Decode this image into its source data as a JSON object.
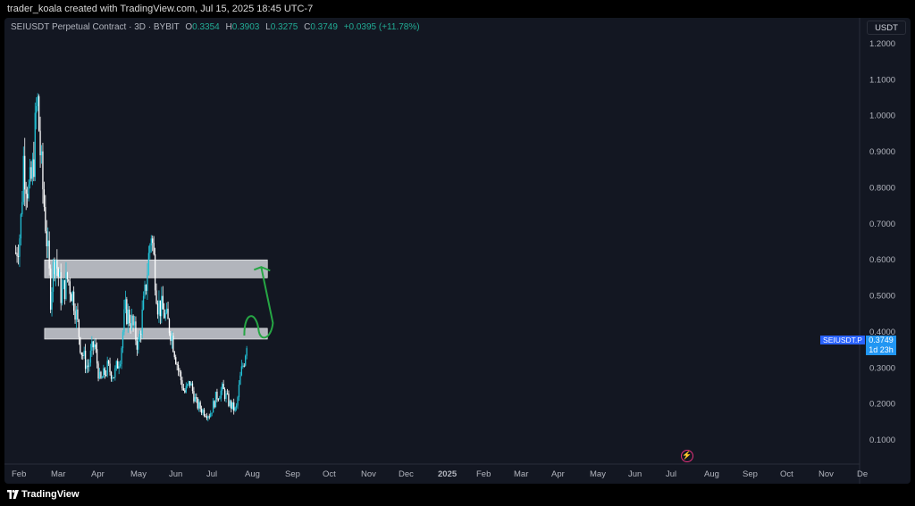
{
  "header": {
    "credit": "trader_koala created with TradingView.com, Jul 15, 2025 18:45 UTC-7"
  },
  "legend": {
    "symbol": "SEIUSDT Perpetual Contract · 3D · BYBIT",
    "open_label": "O",
    "open": "0.3354",
    "high_label": "H",
    "high": "0.3903",
    "low_label": "L",
    "low": "0.3275",
    "close_label": "C",
    "close": "0.3749",
    "change": "+0.0395 (+11.78%)"
  },
  "price_axis": {
    "unit": "USDT",
    "ticks": [
      "1.2000",
      "1.1000",
      "1.0000",
      "0.9000",
      "0.8000",
      "0.7000",
      "0.6000",
      "0.5000",
      "0.4000",
      "0.3000",
      "0.2000",
      "0.1000"
    ]
  },
  "time_axis": {
    "ticks": [
      "Feb",
      "Mar",
      "Apr",
      "May",
      "Jun",
      "Jul",
      "Aug",
      "Sep",
      "Oct",
      "Nov",
      "Dec",
      "2025",
      "Feb",
      "Mar",
      "Apr",
      "May",
      "Jun",
      "Jul",
      "Aug",
      "Sep",
      "Oct",
      "Nov",
      "De"
    ]
  },
  "price_tag": {
    "symbol": "SEIUSDT.P",
    "value": "0.3749",
    "countdown": "1d 23h"
  },
  "footer": {
    "brand": "TradingView"
  },
  "colors": {
    "up": "#22c1d6",
    "down": "#ffffff",
    "zone_fill": "#d6d8de",
    "arrow": "#26a644",
    "background": "#131722"
  },
  "chart_data": {
    "type": "candlestick",
    "symbol": "SEIUSDT.P",
    "timeframe": "3D",
    "exchange": "BYBIT",
    "ylim": [
      0.0,
      1.25
    ],
    "grid": false,
    "zones": [
      {
        "from": 0.55,
        "to": 0.6,
        "start": "2024-04",
        "end": "2025-09"
      },
      {
        "from": 0.38,
        "to": 0.41,
        "start": "2024-04",
        "end": "2025-09"
      }
    ],
    "projection": {
      "from": 0.39,
      "to": 0.58,
      "start": "2025-07",
      "end": "2025-08"
    },
    "approx_closes": [
      {
        "x": "2024-01-25",
        "y": 0.62
      },
      {
        "x": "2024-02-05",
        "y": 0.68
      },
      {
        "x": "2024-02-12",
        "y": 0.88
      },
      {
        "x": "2024-02-25",
        "y": 0.78
      },
      {
        "x": "2024-03-05",
        "y": 0.85
      },
      {
        "x": "2024-03-15",
        "y": 1.05
      },
      {
        "x": "2024-03-25",
        "y": 0.84
      },
      {
        "x": "2024-04-05",
        "y": 0.68
      },
      {
        "x": "2024-04-15",
        "y": 0.5
      },
      {
        "x": "2024-04-25",
        "y": 0.62
      },
      {
        "x": "2024-05-10",
        "y": 0.5
      },
      {
        "x": "2024-05-25",
        "y": 0.55
      },
      {
        "x": "2024-06-10",
        "y": 0.48
      },
      {
        "x": "2024-06-25",
        "y": 0.35
      },
      {
        "x": "2024-07-10",
        "y": 0.3
      },
      {
        "x": "2024-07-25",
        "y": 0.37
      },
      {
        "x": "2024-08-08",
        "y": 0.26
      },
      {
        "x": "2024-08-25",
        "y": 0.3
      },
      {
        "x": "2024-09-10",
        "y": 0.28
      },
      {
        "x": "2024-09-25",
        "y": 0.34
      },
      {
        "x": "2024-10-05",
        "y": 0.46
      },
      {
        "x": "2024-10-20",
        "y": 0.43
      },
      {
        "x": "2024-11-05",
        "y": 0.36
      },
      {
        "x": "2024-11-20",
        "y": 0.5
      },
      {
        "x": "2024-12-05",
        "y": 0.68
      },
      {
        "x": "2024-12-20",
        "y": 0.48
      },
      {
        "x": "2025-01-05",
        "y": 0.45
      },
      {
        "x": "2025-01-20",
        "y": 0.4
      },
      {
        "x": "2025-02-05",
        "y": 0.3
      },
      {
        "x": "2025-02-20",
        "y": 0.23
      },
      {
        "x": "2025-03-05",
        "y": 0.26
      },
      {
        "x": "2025-03-20",
        "y": 0.2
      },
      {
        "x": "2025-04-05",
        "y": 0.18
      },
      {
        "x": "2025-04-20",
        "y": 0.17
      },
      {
        "x": "2025-05-05",
        "y": 0.22
      },
      {
        "x": "2025-05-20",
        "y": 0.24
      },
      {
        "x": "2025-06-05",
        "y": 0.2
      },
      {
        "x": "2025-06-20",
        "y": 0.18
      },
      {
        "x": "2025-07-01",
        "y": 0.28
      },
      {
        "x": "2025-07-10",
        "y": 0.33
      },
      {
        "x": "2025-07-15",
        "y": 0.3749
      }
    ]
  }
}
